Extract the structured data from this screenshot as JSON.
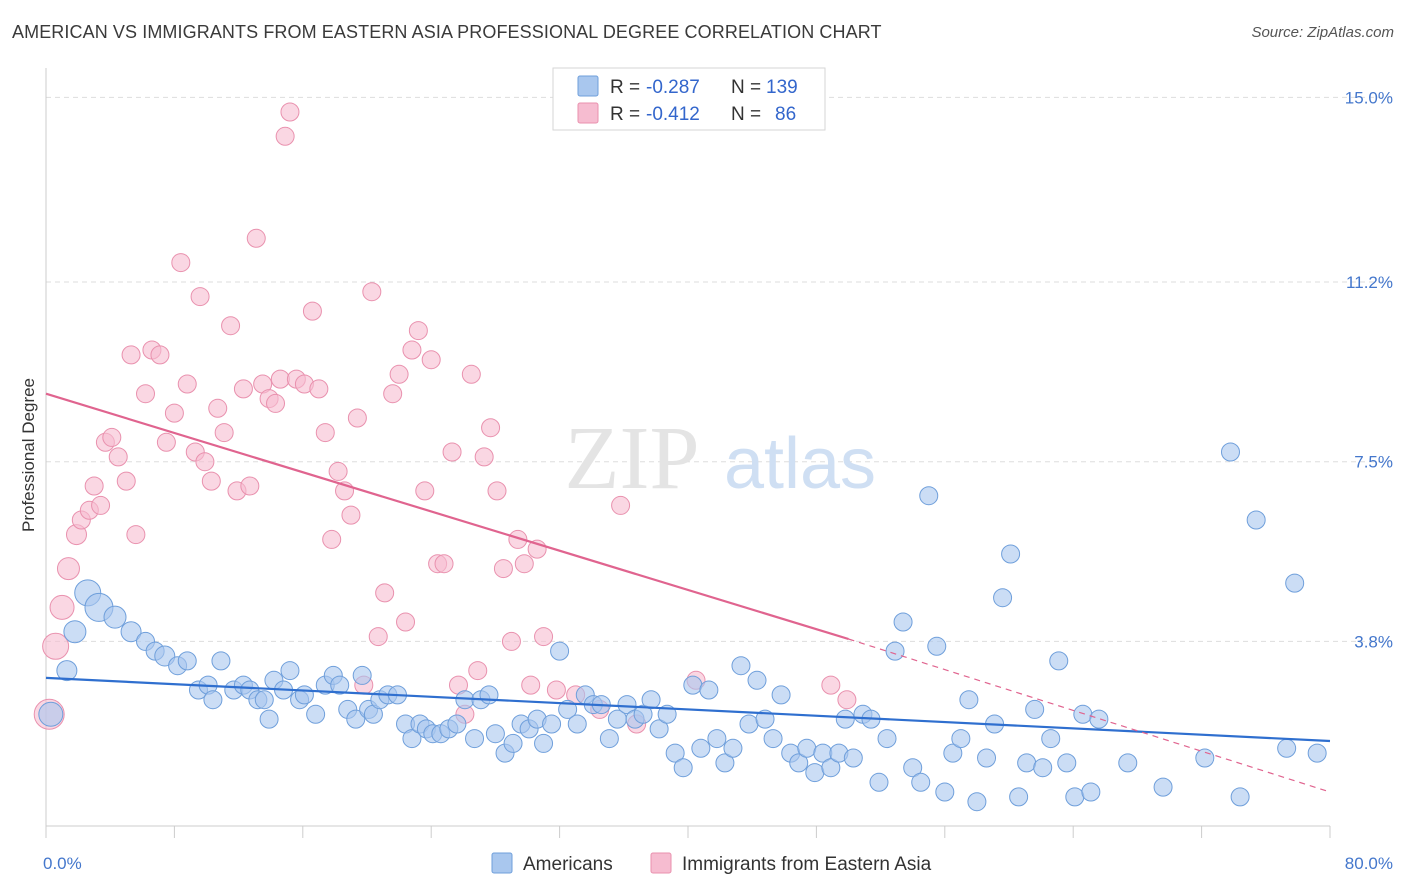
{
  "title": "AMERICAN VS IMMIGRANTS FROM EASTERN ASIA PROFESSIONAL DEGREE CORRELATION CHART",
  "source": "Source: ZipAtlas.com",
  "watermark": {
    "zip": "ZIP",
    "atlas": "atlas"
  },
  "colors": {
    "blue_fill": "#a9c7ee",
    "blue_stroke": "#6f9fdb",
    "blue_line": "#2f6fcf",
    "pink_fill": "#f6bcd0",
    "pink_stroke": "#e991ae",
    "pink_line": "#e0648f",
    "axis_text": "#4477cc",
    "grid": "#dddddd"
  },
  "legend": {
    "row1": {
      "r_label": "R =",
      "r_value": "-0.287",
      "n_label": "N =",
      "n_value": "139"
    },
    "row2": {
      "r_label": "R =",
      "r_value": "-0.412",
      "n_label": "N =",
      "n_value": "86"
    }
  },
  "chart_data": {
    "type": "scatter",
    "title": "AMERICAN VS IMMIGRANTS FROM EASTERN ASIA PROFESSIONAL DEGREE CORRELATION CHART",
    "xlabel": "",
    "ylabel": "Professional Degree",
    "xlim": [
      0,
      80
    ],
    "ylim": [
      0,
      15.4
    ],
    "x_tick_labels": [
      "0.0%",
      "80.0%"
    ],
    "y_ticks": [
      3.8,
      7.5,
      11.2,
      15.0
    ],
    "y_tick_labels": [
      "3.8%",
      "7.5%",
      "11.2%",
      "15.0%"
    ],
    "grid": true,
    "legend_position": "top-center",
    "series": [
      {
        "name": "Americans",
        "color": "#a9c7ee",
        "trend": {
          "x": [
            0,
            80
          ],
          "y": [
            3.05,
            1.75
          ]
        },
        "points": [
          [
            0.3,
            2.3,
            12
          ],
          [
            1.3,
            3.2,
            10
          ],
          [
            1.8,
            4.0,
            11
          ],
          [
            2.6,
            4.8,
            13
          ],
          [
            3.3,
            4.5,
            14
          ],
          [
            4.3,
            4.3,
            11
          ],
          [
            5.3,
            4.0,
            10
          ],
          [
            6.2,
            3.8,
            9
          ],
          [
            6.8,
            3.6,
            9
          ],
          [
            7.4,
            3.5,
            10
          ],
          [
            8.2,
            3.3,
            9
          ],
          [
            8.8,
            3.4,
            9
          ],
          [
            9.5,
            2.8,
            9
          ],
          [
            10.1,
            2.9,
            9
          ],
          [
            10.4,
            2.6,
            9
          ],
          [
            10.9,
            3.4,
            9
          ],
          [
            11.7,
            2.8,
            9
          ],
          [
            12.3,
            2.9,
            9
          ],
          [
            12.7,
            2.8,
            9
          ],
          [
            13.2,
            2.6,
            9
          ],
          [
            13.6,
            2.6,
            9
          ],
          [
            13.9,
            2.2,
            9
          ],
          [
            14.2,
            3.0,
            9
          ],
          [
            14.8,
            2.8,
            9
          ],
          [
            15.2,
            3.2,
            9
          ],
          [
            15.8,
            2.6,
            9
          ],
          [
            16.1,
            2.7,
            9
          ],
          [
            16.8,
            2.3,
            9
          ],
          [
            17.4,
            2.9,
            9
          ],
          [
            17.9,
            3.1,
            9
          ],
          [
            18.3,
            2.9,
            9
          ],
          [
            18.8,
            2.4,
            9
          ],
          [
            19.3,
            2.2,
            9
          ],
          [
            19.7,
            3.1,
            9
          ],
          [
            20.1,
            2.4,
            9
          ],
          [
            20.4,
            2.3,
            9
          ],
          [
            20.8,
            2.6,
            9
          ],
          [
            21.3,
            2.7,
            9
          ],
          [
            21.9,
            2.7,
            9
          ],
          [
            22.4,
            2.1,
            9
          ],
          [
            22.8,
            1.8,
            9
          ],
          [
            23.3,
            2.1,
            9
          ],
          [
            23.7,
            2.0,
            9
          ],
          [
            24.1,
            1.9,
            9
          ],
          [
            24.6,
            1.9,
            9
          ],
          [
            25.1,
            2.0,
            9
          ],
          [
            25.6,
            2.1,
            9
          ],
          [
            26.1,
            2.6,
            9
          ],
          [
            26.7,
            1.8,
            9
          ],
          [
            27.1,
            2.6,
            9
          ],
          [
            27.6,
            2.7,
            9
          ],
          [
            28.0,
            1.9,
            9
          ],
          [
            28.6,
            1.5,
            9
          ],
          [
            29.1,
            1.7,
            9
          ],
          [
            29.6,
            2.1,
            9
          ],
          [
            30.1,
            2.0,
            9
          ],
          [
            30.6,
            2.2,
            9
          ],
          [
            31.0,
            1.7,
            9
          ],
          [
            31.5,
            2.1,
            9
          ],
          [
            32.0,
            3.6,
            9
          ],
          [
            32.5,
            2.4,
            9
          ],
          [
            33.1,
            2.1,
            9
          ],
          [
            33.6,
            2.7,
            9
          ],
          [
            34.1,
            2.5,
            9
          ],
          [
            34.6,
            2.5,
            9
          ],
          [
            35.1,
            1.8,
            9
          ],
          [
            35.6,
            2.2,
            9
          ],
          [
            36.2,
            2.5,
            9
          ],
          [
            36.7,
            2.2,
            9
          ],
          [
            37.2,
            2.3,
            9
          ],
          [
            37.7,
            2.6,
            9
          ],
          [
            38.2,
            2.0,
            9
          ],
          [
            38.7,
            2.3,
            9
          ],
          [
            39.2,
            1.5,
            9
          ],
          [
            39.7,
            1.2,
            9
          ],
          [
            40.3,
            2.9,
            9
          ],
          [
            40.8,
            1.6,
            9
          ],
          [
            41.3,
            2.8,
            9
          ],
          [
            41.8,
            1.8,
            9
          ],
          [
            42.3,
            1.3,
            9
          ],
          [
            42.8,
            1.6,
            9
          ],
          [
            43.3,
            3.3,
            9
          ],
          [
            43.8,
            2.1,
            9
          ],
          [
            44.3,
            3.0,
            9
          ],
          [
            44.8,
            2.2,
            9
          ],
          [
            45.3,
            1.8,
            9
          ],
          [
            45.8,
            2.7,
            9
          ],
          [
            46.4,
            1.5,
            9
          ],
          [
            46.9,
            1.3,
            9
          ],
          [
            47.4,
            1.6,
            9
          ],
          [
            47.9,
            1.1,
            9
          ],
          [
            48.4,
            1.5,
            9
          ],
          [
            48.9,
            1.2,
            9
          ],
          [
            49.4,
            1.5,
            9
          ],
          [
            49.8,
            2.2,
            9
          ],
          [
            50.3,
            1.4,
            9
          ],
          [
            50.9,
            2.3,
            9
          ],
          [
            51.4,
            2.2,
            9
          ],
          [
            51.9,
            0.9,
            9
          ],
          [
            52.4,
            1.8,
            9
          ],
          [
            52.9,
            3.6,
            9
          ],
          [
            53.4,
            4.2,
            9
          ],
          [
            54.0,
            1.2,
            9
          ],
          [
            54.5,
            0.9,
            9
          ],
          [
            55.0,
            6.8,
            9
          ],
          [
            55.5,
            3.7,
            9
          ],
          [
            56.0,
            0.7,
            9
          ],
          [
            56.5,
            1.5,
            9
          ],
          [
            57.0,
            1.8,
            9
          ],
          [
            57.5,
            2.6,
            9
          ],
          [
            58.0,
            0.5,
            9
          ],
          [
            58.6,
            1.4,
            9
          ],
          [
            59.1,
            2.1,
            9
          ],
          [
            59.6,
            4.7,
            9
          ],
          [
            60.1,
            5.6,
            9
          ],
          [
            60.6,
            0.6,
            9
          ],
          [
            61.1,
            1.3,
            9
          ],
          [
            61.6,
            2.4,
            9
          ],
          [
            62.1,
            1.2,
            9
          ],
          [
            62.6,
            1.8,
            9
          ],
          [
            63.1,
            3.4,
            9
          ],
          [
            63.6,
            1.3,
            9
          ],
          [
            64.1,
            0.6,
            9
          ],
          [
            64.6,
            2.3,
            9
          ],
          [
            65.1,
            0.7,
            9
          ],
          [
            65.6,
            2.2,
            9
          ],
          [
            67.4,
            1.3,
            9
          ],
          [
            69.6,
            0.8,
            9
          ],
          [
            72.2,
            1.4,
            9
          ],
          [
            73.8,
            7.7,
            9
          ],
          [
            74.4,
            0.6,
            9
          ],
          [
            75.4,
            6.3,
            9
          ],
          [
            77.3,
            1.6,
            9
          ],
          [
            77.8,
            5.0,
            9
          ],
          [
            79.2,
            1.5,
            9
          ]
        ]
      },
      {
        "name": "Immigrants from Eastern Asia",
        "color": "#f6bcd0",
        "trend": {
          "x": [
            0,
            50
          ],
          "y": [
            8.9,
            3.85
          ]
        },
        "trend_dashed": {
          "x": [
            50,
            80
          ],
          "y": [
            3.85,
            0.7
          ]
        },
        "points": [
          [
            0.2,
            2.3,
            15
          ],
          [
            0.6,
            3.7,
            13
          ],
          [
            1.0,
            4.5,
            12
          ],
          [
            1.4,
            5.3,
            11
          ],
          [
            1.9,
            6.0,
            10
          ],
          [
            2.2,
            6.3,
            9
          ],
          [
            2.7,
            6.5,
            9
          ],
          [
            3.0,
            7.0,
            9
          ],
          [
            3.4,
            6.6,
            9
          ],
          [
            3.7,
            7.9,
            9
          ],
          [
            4.1,
            8.0,
            9
          ],
          [
            4.5,
            7.6,
            9
          ],
          [
            5.0,
            7.1,
            9
          ],
          [
            5.3,
            9.7,
            9
          ],
          [
            5.6,
            6.0,
            9
          ],
          [
            6.2,
            8.9,
            9
          ],
          [
            6.6,
            9.8,
            9
          ],
          [
            7.1,
            9.7,
            9
          ],
          [
            7.5,
            7.9,
            9
          ],
          [
            8.0,
            8.5,
            9
          ],
          [
            8.4,
            11.6,
            9
          ],
          [
            8.8,
            9.1,
            9
          ],
          [
            9.3,
            7.7,
            9
          ],
          [
            9.6,
            10.9,
            9
          ],
          [
            9.9,
            7.5,
            9
          ],
          [
            10.3,
            7.1,
            9
          ],
          [
            10.7,
            8.6,
            9
          ],
          [
            11.1,
            8.1,
            9
          ],
          [
            11.5,
            10.3,
            9
          ],
          [
            11.9,
            6.9,
            9
          ],
          [
            12.3,
            9.0,
            9
          ],
          [
            12.7,
            7.0,
            9
          ],
          [
            13.1,
            12.1,
            9
          ],
          [
            13.5,
            9.1,
            9
          ],
          [
            13.9,
            8.8,
            9
          ],
          [
            14.3,
            8.7,
            9
          ],
          [
            14.6,
            9.2,
            9
          ],
          [
            14.9,
            14.2,
            9
          ],
          [
            15.2,
            14.7,
            9
          ],
          [
            15.6,
            9.2,
            9
          ],
          [
            16.1,
            9.1,
            9
          ],
          [
            16.6,
            10.6,
            9
          ],
          [
            17.0,
            9.0,
            9
          ],
          [
            17.4,
            8.1,
            9
          ],
          [
            17.8,
            5.9,
            9
          ],
          [
            18.2,
            7.3,
            9
          ],
          [
            18.6,
            6.9,
            9
          ],
          [
            19.0,
            6.4,
            9
          ],
          [
            19.4,
            8.4,
            9
          ],
          [
            19.8,
            2.9,
            9
          ],
          [
            20.3,
            11.0,
            9
          ],
          [
            20.7,
            3.9,
            9
          ],
          [
            21.1,
            4.8,
            9
          ],
          [
            21.6,
            8.9,
            9
          ],
          [
            22.0,
            9.3,
            9
          ],
          [
            22.4,
            4.2,
            9
          ],
          [
            22.8,
            9.8,
            9
          ],
          [
            23.2,
            10.2,
            9
          ],
          [
            23.6,
            6.9,
            9
          ],
          [
            24.0,
            9.6,
            9
          ],
          [
            24.4,
            5.4,
            9
          ],
          [
            24.8,
            5.4,
            9
          ],
          [
            25.3,
            7.7,
            9
          ],
          [
            25.7,
            2.9,
            9
          ],
          [
            26.1,
            2.3,
            9
          ],
          [
            26.5,
            9.3,
            9
          ],
          [
            26.9,
            3.2,
            9
          ],
          [
            27.3,
            7.6,
            9
          ],
          [
            27.7,
            8.2,
            9
          ],
          [
            28.1,
            6.9,
            9
          ],
          [
            28.5,
            5.3,
            9
          ],
          [
            29.0,
            3.8,
            9
          ],
          [
            29.4,
            5.9,
            9
          ],
          [
            29.8,
            5.4,
            9
          ],
          [
            30.2,
            2.9,
            9
          ],
          [
            30.6,
            5.7,
            9
          ],
          [
            31.0,
            3.9,
            9
          ],
          [
            31.8,
            2.8,
            9
          ],
          [
            33.0,
            2.7,
            9
          ],
          [
            34.5,
            2.4,
            9
          ],
          [
            35.8,
            6.6,
            9
          ],
          [
            36.8,
            2.1,
            9
          ],
          [
            40.5,
            3.0,
            9
          ],
          [
            48.9,
            2.9,
            9
          ],
          [
            49.9,
            2.6,
            9
          ]
        ]
      }
    ]
  },
  "bottom_legend": [
    "Americans",
    "Immigrants from Eastern Asia"
  ]
}
